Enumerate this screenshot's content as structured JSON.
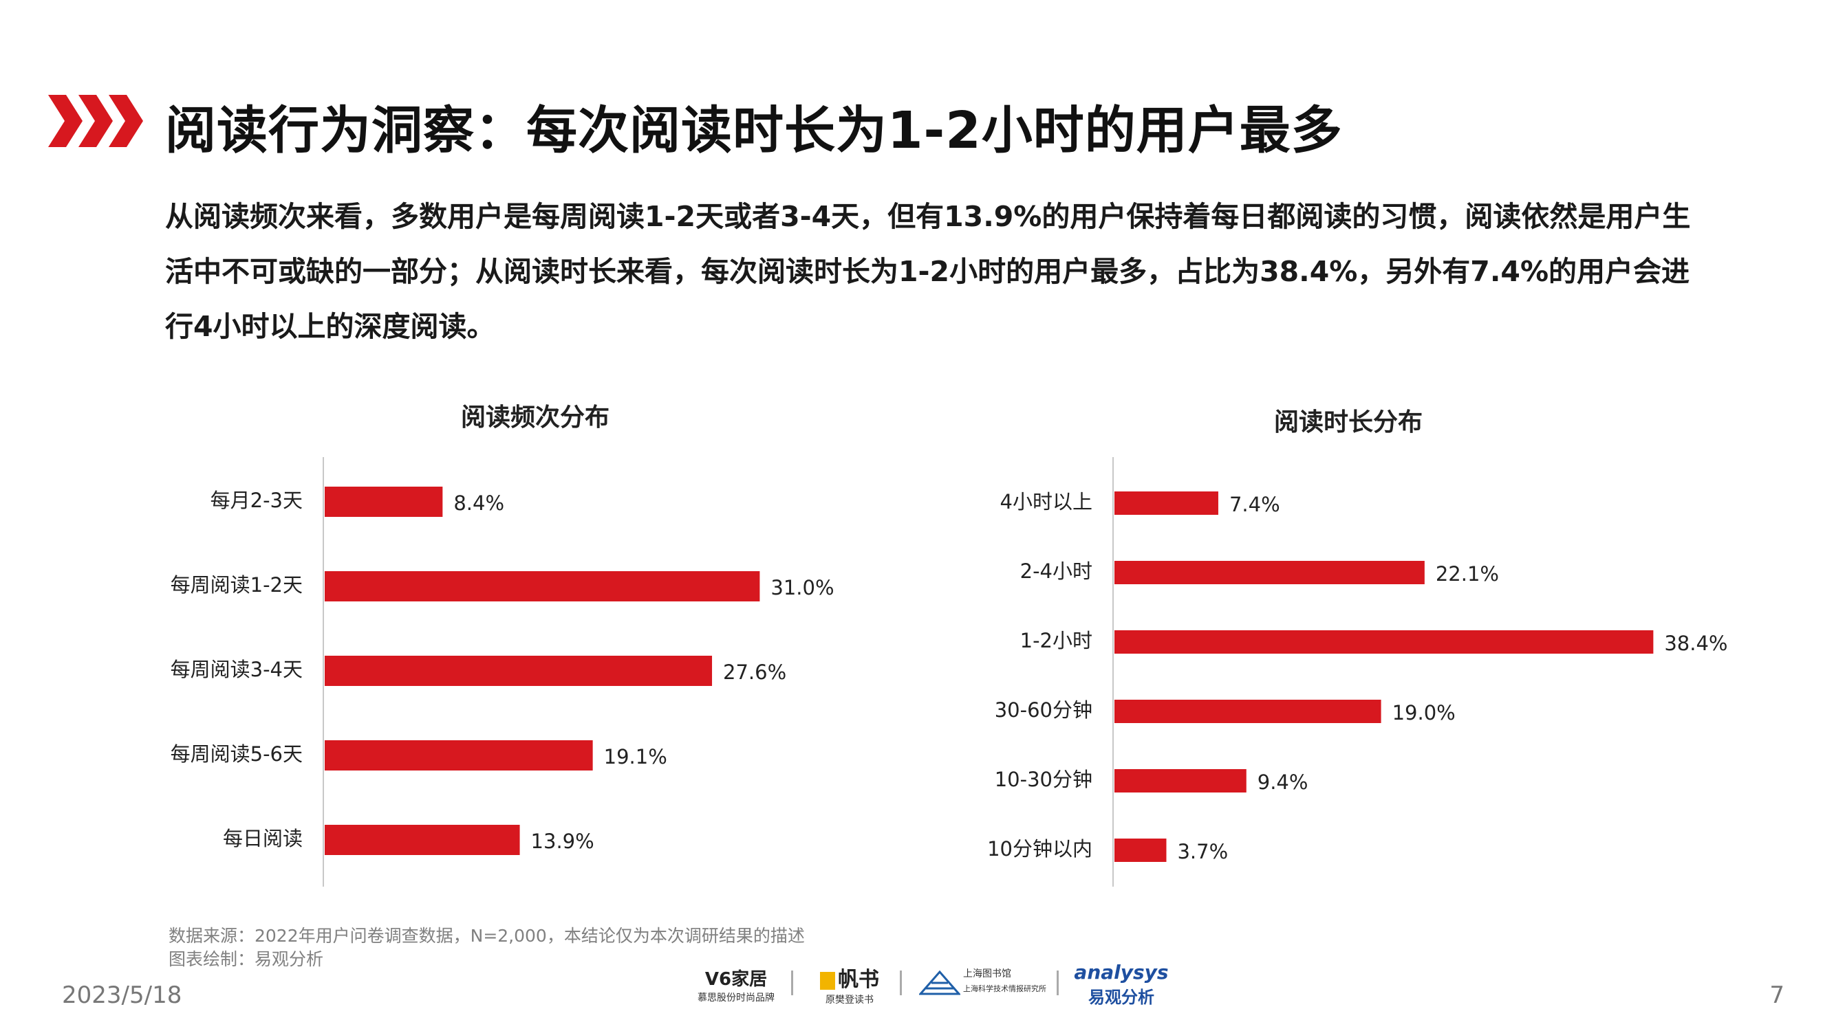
{
  "page": {
    "title": "阅读行为洞察：每次阅读时长为1-2小时的用户最多",
    "intro": "从阅读频次来看，多数用户是每周阅读1-2天或者3-4天，但有13.9%的用户保持着每日都阅读的习惯，阅读依然是用户生活中不可或缺的一部分；从阅读时长来看，每次阅读时长为1-2小时的用户最多，占比为38.4%，另外有7.4%的用户会进行4小时以上的深度阅读。",
    "source": "数据来源：2022年用户问卷调查数据，N=2,000，本结论仅为本次调研结果的描述",
    "drawn_by": "图表绘制：易观分析",
    "date": "2023/5/18",
    "page_number": "7",
    "accent_color": "#d7181f"
  },
  "logos": {
    "v6_name": "V6家居",
    "v6_sub": "慕思股份时尚品牌",
    "fanshu_name": "帆书",
    "fanshu_sub": "原樊登读书",
    "library_name": "上海图书馆",
    "library_sub": "上海科学技术情报研究所",
    "analysys_name": "analysys",
    "analysys_sub": "易观分析"
  },
  "chart_data": [
    {
      "type": "bar",
      "orientation": "horizontal",
      "title": "阅读频次分布",
      "categories": [
        "每月2-3天",
        "每周阅读1-2天",
        "每周阅读3-4天",
        "每周阅读5-6天",
        "每日阅读"
      ],
      "values": [
        8.4,
        31.0,
        27.6,
        19.1,
        13.9
      ],
      "value_labels": [
        "8.4%",
        "31.0%",
        "27.6%",
        "19.1%",
        "13.9%"
      ],
      "unit": "%",
      "xlim": [
        0,
        40
      ],
      "color": "#d7181f",
      "grid": false
    },
    {
      "type": "bar",
      "orientation": "horizontal",
      "title": "阅读时长分布",
      "categories": [
        "4小时以上",
        "2-4小时",
        "1-2小时",
        "30-60分钟",
        "10-30分钟",
        "10分钟以内"
      ],
      "values": [
        7.4,
        22.1,
        38.4,
        19.0,
        9.4,
        3.7
      ],
      "value_labels": [
        "7.4%",
        "22.1%",
        "38.4%",
        "19.0%",
        "9.4%",
        "3.7%"
      ],
      "unit": "%",
      "xlim": [
        0,
        40
      ],
      "color": "#d7181f",
      "grid": false
    }
  ]
}
